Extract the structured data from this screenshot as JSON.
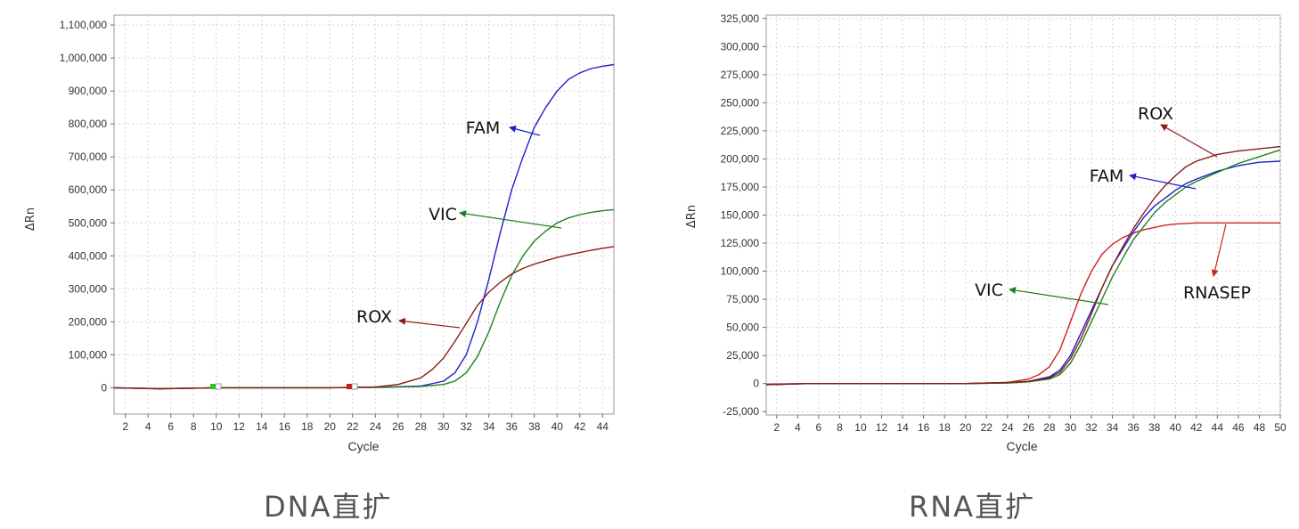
{
  "chart_data": [
    {
      "type": "line",
      "caption": "DNA直扩",
      "xlabel": "Cycle",
      "ylabel": "ΔRn",
      "xlim": [
        1,
        45
      ],
      "ylim": [
        -80000,
        1130000
      ],
      "x_ticks": [
        "2",
        "4",
        "6",
        "8",
        "10",
        "12",
        "14",
        "16",
        "18",
        "20",
        "22",
        "24",
        "26",
        "28",
        "30",
        "32",
        "34",
        "36",
        "38",
        "40",
        "42",
        "44"
      ],
      "y_ticks": [
        "0",
        "100,000",
        "200,000",
        "300,000",
        "400,000",
        "500,000",
        "600,000",
        "700,000",
        "800,000",
        "900,000",
        "1,000,000",
        "1,100,000"
      ],
      "grid": true,
      "series": [
        {
          "name": "FAM",
          "color": "#2020c8",
          "x": [
            1,
            5,
            10,
            15,
            20,
            24,
            26,
            28,
            30,
            31,
            32,
            33,
            34,
            35,
            36,
            37,
            38,
            39,
            40,
            41,
            42,
            43,
            44,
            45
          ],
          "y": [
            0,
            -3000,
            0,
            0,
            0,
            2000,
            3000,
            5000,
            20000,
            45000,
            100000,
            200000,
            330000,
            470000,
            600000,
            700000,
            790000,
            850000,
            900000,
            935000,
            955000,
            968000,
            975000,
            980000
          ]
        },
        {
          "name": "VIC",
          "color": "#208020",
          "x": [
            1,
            5,
            10,
            15,
            20,
            24,
            26,
            28,
            30,
            31,
            32,
            33,
            34,
            35,
            36,
            37,
            38,
            39,
            40,
            41,
            42,
            43,
            44,
            45
          ],
          "y": [
            0,
            -3000,
            0,
            0,
            0,
            1000,
            2000,
            4000,
            10000,
            20000,
            45000,
            95000,
            170000,
            260000,
            340000,
            400000,
            445000,
            475000,
            500000,
            515000,
            525000,
            532000,
            537000,
            540000
          ]
        },
        {
          "name": "ROX",
          "color": "#8b1a1a",
          "x": [
            1,
            5,
            10,
            15,
            20,
            24,
            26,
            28,
            29,
            30,
            31,
            32,
            33,
            34,
            35,
            36,
            37,
            38,
            39,
            40,
            41,
            42,
            43,
            44,
            45
          ],
          "y": [
            0,
            -3000,
            0,
            0,
            0,
            2000,
            10000,
            30000,
            55000,
            90000,
            140000,
            195000,
            250000,
            290000,
            320000,
            345000,
            362000,
            375000,
            385000,
            395000,
            403000,
            410000,
            417000,
            423000,
            428000
          ]
        }
      ],
      "annotations": [
        {
          "text": "FAM",
          "series": "FAM"
        },
        {
          "text": "VIC",
          "series": "VIC"
        },
        {
          "text": "ROX",
          "series": "ROX"
        }
      ]
    },
    {
      "type": "line",
      "caption": "RNA直扩",
      "xlabel": "Cycle",
      "ylabel": "ΔRn",
      "xlim": [
        1,
        50
      ],
      "ylim": [
        -28000,
        328000
      ],
      "x_ticks": [
        "2",
        "4",
        "6",
        "8",
        "10",
        "12",
        "14",
        "16",
        "18",
        "20",
        "22",
        "24",
        "26",
        "28",
        "30",
        "32",
        "34",
        "36",
        "38",
        "40",
        "42",
        "44",
        "46",
        "48",
        "50"
      ],
      "y_ticks": [
        "-25,000",
        "0",
        "25,000",
        "50,000",
        "75,000",
        "100,000",
        "125,000",
        "150,000",
        "175,000",
        "200,000",
        "225,000",
        "250,000",
        "275,000",
        "300,000",
        "325,000"
      ],
      "grid": true,
      "series": [
        {
          "name": "RNASEP",
          "color": "#d02020",
          "x": [
            1,
            5,
            10,
            15,
            20,
            24,
            26,
            27,
            28,
            29,
            30,
            31,
            32,
            33,
            34,
            35,
            36,
            37,
            38,
            39,
            40,
            42,
            45,
            50
          ],
          "y": [
            -500,
            0,
            0,
            0,
            0,
            1000,
            4000,
            8000,
            15000,
            30000,
            55000,
            80000,
            100000,
            115000,
            124000,
            130000,
            134000,
            137000,
            139000,
            141000,
            142000,
            143000,
            143000,
            143000
          ]
        },
        {
          "name": "FAM",
          "color": "#2020c8",
          "x": [
            1,
            5,
            10,
            15,
            20,
            24,
            26,
            28,
            29,
            30,
            31,
            32,
            33,
            34,
            35,
            36,
            37,
            38,
            39,
            40,
            41,
            42,
            44,
            46,
            48,
            50
          ],
          "y": [
            -1000,
            0,
            0,
            0,
            0,
            500,
            2000,
            6000,
            12000,
            25000,
            45000,
            65000,
            85000,
            105000,
            120000,
            135000,
            148000,
            158000,
            165000,
            172000,
            178000,
            182000,
            189000,
            194000,
            197000,
            198000
          ]
        },
        {
          "name": "VIC",
          "color": "#208020",
          "x": [
            1,
            5,
            10,
            15,
            20,
            24,
            26,
            28,
            29,
            30,
            31,
            32,
            33,
            34,
            35,
            36,
            37,
            38,
            39,
            40,
            41,
            42,
            44,
            46,
            48,
            50
          ],
          "y": [
            -1000,
            0,
            0,
            0,
            0,
            500,
            1500,
            4000,
            8000,
            18000,
            35000,
            55000,
            75000,
            95000,
            112000,
            128000,
            140000,
            152000,
            161000,
            168000,
            175000,
            180000,
            188000,
            196000,
            202000,
            208000
          ]
        },
        {
          "name": "ROX",
          "color": "#8b1a1a",
          "x": [
            1,
            5,
            10,
            15,
            20,
            24,
            26,
            28,
            29,
            30,
            31,
            32,
            33,
            34,
            35,
            36,
            37,
            38,
            39,
            40,
            41,
            42,
            44,
            46,
            48,
            50
          ],
          "y": [
            -1000,
            0,
            0,
            0,
            0,
            1000,
            2000,
            5000,
            10000,
            22000,
            40000,
            62000,
            85000,
            105000,
            122000,
            138000,
            152000,
            165000,
            176000,
            185000,
            193000,
            198000,
            204000,
            207000,
            209000,
            211000
          ]
        }
      ],
      "annotations": [
        {
          "text": "ROX",
          "series": "ROX"
        },
        {
          "text": "FAM",
          "series": "FAM"
        },
        {
          "text": "VIC",
          "series": "VIC"
        },
        {
          "text": "RNASEP",
          "series": "RNASEP"
        }
      ]
    }
  ]
}
